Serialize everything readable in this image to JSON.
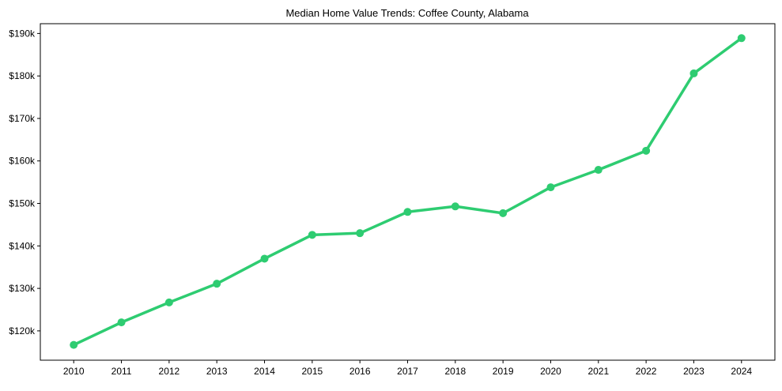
{
  "chart_data": {
    "type": "line",
    "title": "Median Home Value Trends: Coffee County, Alabama",
    "xlabel": "",
    "ylabel": "",
    "x": [
      2010,
      2011,
      2012,
      2013,
      2014,
      2015,
      2016,
      2017,
      2018,
      2019,
      2020,
      2021,
      2022,
      2023,
      2024
    ],
    "series": [
      {
        "name": "Median Home Value",
        "color": "#2ecc71",
        "values": [
          116.7,
          122.0,
          126.7,
          131.1,
          137.0,
          142.6,
          143.0,
          148.0,
          149.3,
          147.7,
          153.8,
          157.9,
          162.4,
          180.6,
          188.9
        ]
      }
    ],
    "value_unit": "thousands USD",
    "xlim": [
      2009.3,
      2024.7
    ],
    "ylim": [
      113.1,
      192.3
    ],
    "yticks": [
      120,
      130,
      140,
      150,
      160,
      170,
      180,
      190
    ],
    "ytick_labels": [
      "$120k",
      "$130k",
      "$140k",
      "$150k",
      "$160k",
      "$170k",
      "$180k",
      "$190k"
    ],
    "xtick_labels": [
      "2010",
      "2011",
      "2012",
      "2013",
      "2014",
      "2015",
      "2016",
      "2017",
      "2018",
      "2019",
      "2020",
      "2021",
      "2022",
      "2023",
      "2024"
    ],
    "grid": false,
    "legend": "none"
  }
}
